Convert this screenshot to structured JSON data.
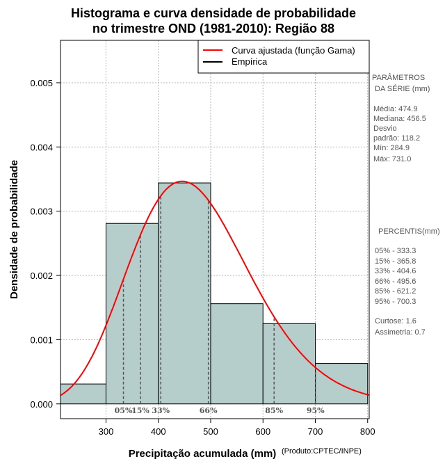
{
  "chart_data": {
    "type": "bar",
    "title_line1": "Histograma e curva densidade de probabilidade",
    "title_line2": "no trimestre OND (1981-2010): Região 88",
    "xlabel": "Precipitação acumulada (mm)",
    "ylabel": "Densidade de probabilidade",
    "credit": "(Produto:CPTEC/INPE)",
    "xlim": [
      213,
      803
    ],
    "ylim": [
      -0.00023,
      0.00566
    ],
    "x_ticks": [
      300,
      400,
      500,
      600,
      700,
      800
    ],
    "y_ticks": [
      0.0,
      0.001,
      0.002,
      0.003,
      0.004,
      0.005
    ],
    "x_tick_labels": [
      "300",
      "400",
      "500",
      "600",
      "700",
      "800"
    ],
    "y_tick_labels": [
      "0.000",
      "0.001",
      "0.002",
      "0.003",
      "0.004",
      "0.005"
    ],
    "histogram": {
      "name": "Empírica",
      "bins": [
        {
          "from": 213,
          "to": 300,
          "density": 0.00031
        },
        {
          "from": 300,
          "to": 400,
          "density": 0.00281
        },
        {
          "from": 400,
          "to": 500,
          "density": 0.00344
        },
        {
          "from": 500,
          "to": 600,
          "density": 0.00156
        },
        {
          "from": 600,
          "to": 700,
          "density": 0.00125
        },
        {
          "from": 700,
          "to": 800,
          "density": 0.00063
        }
      ],
      "fill_color": "#b5cdcb",
      "edge_color": "#000000"
    },
    "curve": {
      "name": "Curva ajustada (função Gama)",
      "color": "#ff0000",
      "distribution": "gamma",
      "mean": 474.9,
      "sd": 118.2
    },
    "percentiles": [
      {
        "label": "05%",
        "value": 333.3
      },
      {
        "label": "15%",
        "value": 365.8
      },
      {
        "label": "33%",
        "value": 404.6
      },
      {
        "label": "66%",
        "value": 495.6
      },
      {
        "label": "85%",
        "value": 621.2
      },
      {
        "label": "95%",
        "value": 700.3
      }
    ],
    "legend": {
      "position": "top-right",
      "items": [
        "Curva ajustada (função Gama)",
        "Empírica"
      ]
    }
  },
  "side_panel": {
    "params_title_1": "PARÂMETROS",
    "params_title_2": "DA SÉRIE (mm)",
    "params": [
      "Média:  474.9",
      "Mediana:  456.5",
      "Desvio",
      "padrão:  118.2",
      "Mín:  284.9",
      "Máx:  731.0"
    ],
    "percentis_title": "PERCENTIS(mm)",
    "percentis": [
      "05% -   333.3",
      "15% -   365.8",
      "33% -   404.6",
      "66% -   495.6",
      "85% -   621.2",
      "95% -   700.3"
    ],
    "curtose": "Curtose:  1.6",
    "assimetria": "Assimetria:  0.7"
  }
}
